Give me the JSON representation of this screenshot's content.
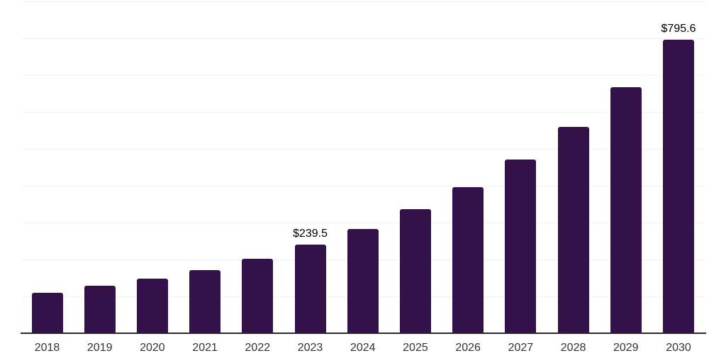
{
  "chart_data": {
    "type": "bar",
    "title": "",
    "xlabel": "",
    "ylabel": "",
    "categories": [
      "2018",
      "2019",
      "2020",
      "2021",
      "2022",
      "2023",
      "2024",
      "2025",
      "2026",
      "2027",
      "2028",
      "2029",
      "2030"
    ],
    "values": [
      109.0,
      129.5,
      147.5,
      171.0,
      202.0,
      239.5,
      283.5,
      336.5,
      396.0,
      471.0,
      559.0,
      666.5,
      795.6
    ],
    "value_labels": [
      "",
      "",
      "",
      "",
      "",
      "$239.5",
      "",
      "",
      "",
      "",
      "",
      "",
      "$795.6"
    ],
    "ylim": [
      0,
      900
    ],
    "gridline_step": 100,
    "grid": "horizontal",
    "legend_position": "none",
    "colors": {
      "bar": "#341149",
      "gridline": "#f2f2f2",
      "axis_line": "#2a2a2a",
      "x_tick_label": "#333333",
      "data_label": "#000000",
      "background": "#ffffff"
    }
  }
}
